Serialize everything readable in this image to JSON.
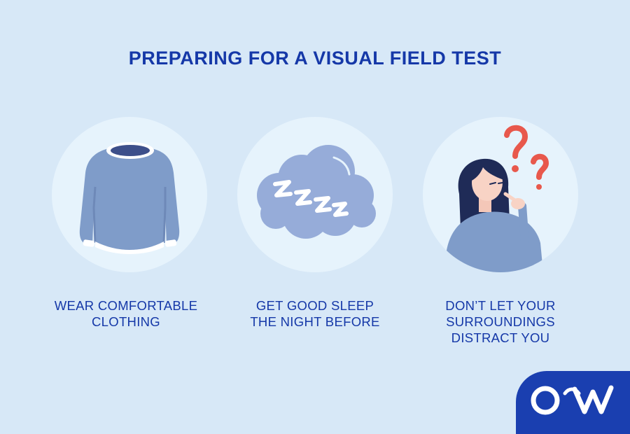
{
  "title": "PREPARING FOR A VISUAL FIELD TEST",
  "tips": [
    {
      "line1": "WEAR COMFORTABLE",
      "line2": "CLOTHING",
      "line3": "",
      "icon": "sweater-icon"
    },
    {
      "line1": "GET GOOD SLEEP",
      "line2": "THE NIGHT BEFORE",
      "line3": "",
      "icon": "sleep-cloud-icon"
    },
    {
      "line1": "DON’T LET YOUR",
      "line2": "SURROUNDINGS",
      "line3": " DISTRACT YOU",
      "icon": "thinking-woman-icon"
    }
  ],
  "logo": {
    "icon": "ow-logo-icon"
  },
  "colors": {
    "background": "#d7e8f7",
    "accent": "#1538a8",
    "circle": "#e6f3fc",
    "illustration_blue": "#7f9cc9",
    "question_red": "#e8584c",
    "badge": "#1a3fb0"
  }
}
